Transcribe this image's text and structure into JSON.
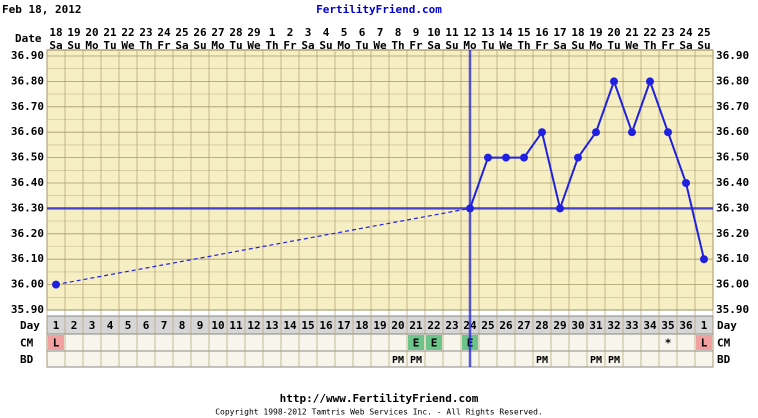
{
  "chart_data": {
    "type": "line",
    "title": "Feb 18, 2012",
    "subtitle": "FertilityFriend.com",
    "date_label": "Date",
    "day_label": "Day",
    "cm_label": "CM",
    "bd_label": "BD",
    "dates": [
      "18",
      "19",
      "20",
      "21",
      "22",
      "23",
      "24",
      "25",
      "26",
      "27",
      "28",
      "29",
      "1",
      "2",
      "3",
      "4",
      "5",
      "6",
      "7",
      "8",
      "9",
      "10",
      "11",
      "12",
      "13",
      "14",
      "15",
      "16",
      "17",
      "18",
      "19",
      "20",
      "21",
      "22",
      "23",
      "24",
      "25"
    ],
    "weekdays": [
      "Sa",
      "Su",
      "Mo",
      "Tu",
      "We",
      "Th",
      "Fr",
      "Sa",
      "Su",
      "Mo",
      "Tu",
      "We",
      "Th",
      "Fr",
      "Sa",
      "Su",
      "Mo",
      "Tu",
      "We",
      "Th",
      "Fr",
      "Sa",
      "Su",
      "Mo",
      "Tu",
      "We",
      "Th",
      "Fr",
      "Sa",
      "Su",
      "Mo",
      "Tu",
      "We",
      "Th",
      "Fr",
      "Sa",
      "Su"
    ],
    "categories": [
      "1",
      "2",
      "3",
      "4",
      "5",
      "6",
      "7",
      "8",
      "9",
      "10",
      "11",
      "12",
      "13",
      "14",
      "15",
      "16",
      "17",
      "18",
      "19",
      "20",
      "21",
      "22",
      "23",
      "24",
      "25",
      "26",
      "27",
      "28",
      "29",
      "30",
      "31",
      "32",
      "33",
      "34",
      "35",
      "36",
      "1"
    ],
    "values": [
      36.0,
      null,
      null,
      null,
      null,
      null,
      null,
      null,
      null,
      null,
      null,
      null,
      null,
      null,
      null,
      null,
      null,
      null,
      null,
      null,
      null,
      null,
      null,
      36.3,
      36.5,
      36.5,
      36.5,
      36.6,
      36.3,
      36.5,
      36.6,
      36.8,
      36.6,
      36.8,
      36.6,
      36.4,
      36.1
    ],
    "color": "#2020e0",
    "cm": [
      "L",
      null,
      null,
      null,
      null,
      null,
      null,
      null,
      null,
      null,
      null,
      null,
      null,
      null,
      null,
      null,
      null,
      null,
      null,
      null,
      "E",
      "E",
      null,
      "E",
      null,
      null,
      null,
      null,
      null,
      null,
      null,
      null,
      null,
      null,
      "*",
      null,
      "L"
    ],
    "cm_colors": {
      "L": "#f2a0a0",
      "E": "#6cc48a"
    },
    "bd": [
      null,
      null,
      null,
      null,
      null,
      null,
      null,
      null,
      null,
      null,
      null,
      null,
      null,
      null,
      null,
      null,
      null,
      null,
      null,
      "PM",
      "PM",
      null,
      null,
      null,
      null,
      null,
      null,
      "PM",
      null,
      null,
      "PM",
      "PM",
      null,
      null,
      null,
      null,
      null
    ],
    "ylim": [
      35.9,
      36.9
    ],
    "yticks": [
      {
        "value": 35.9,
        "label": "35.90"
      },
      {
        "value": 36.0,
        "label": "36.00"
      },
      {
        "value": 36.1,
        "label": "36.10"
      },
      {
        "value": 36.2,
        "label": "36.20"
      },
      {
        "value": 36.3,
        "label": "36.30"
      },
      {
        "value": 36.4,
        "label": "36.40"
      },
      {
        "value": 36.5,
        "label": "36.50"
      },
      {
        "value": 36.6,
        "label": "36.60"
      },
      {
        "value": 36.7,
        "label": "36.70"
      },
      {
        "value": 36.8,
        "label": "36.80"
      },
      {
        "value": 36.9,
        "label": "36.90"
      }
    ],
    "coverline": 36.3,
    "ovulation_day": 24,
    "grid": true,
    "url": "http://www.FertilityFriend.com",
    "copyright": "Copyright 1998-2012 Tamtris Web Services Inc. - All Rights Reserved."
  }
}
